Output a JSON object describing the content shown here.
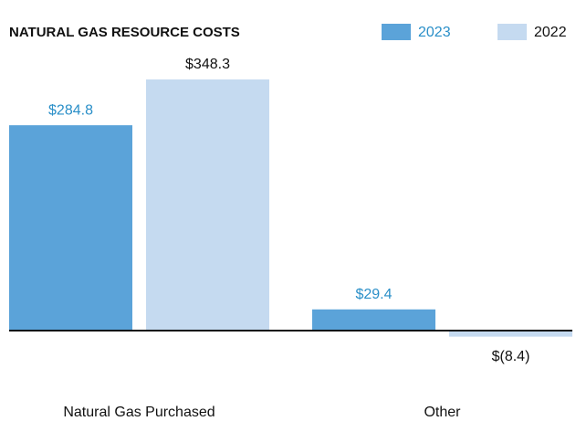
{
  "chart_data": {
    "type": "bar",
    "title": "NATURAL GAS RESOURCE COSTS",
    "categories": [
      "Natural Gas Purchased",
      "Other"
    ],
    "series": [
      {
        "name": "2023",
        "color": "#5ba3d9",
        "label_color": "#2a8fc8",
        "values": [
          284.8,
          29.4
        ],
        "value_labels": [
          "$284.8",
          "$29.4"
        ]
      },
      {
        "name": "2022",
        "color": "#c5daf0",
        "label_color": "#111111",
        "values": [
          348.3,
          -8.4
        ],
        "value_labels": [
          "$348.3",
          "$(8.4)"
        ]
      }
    ]
  }
}
